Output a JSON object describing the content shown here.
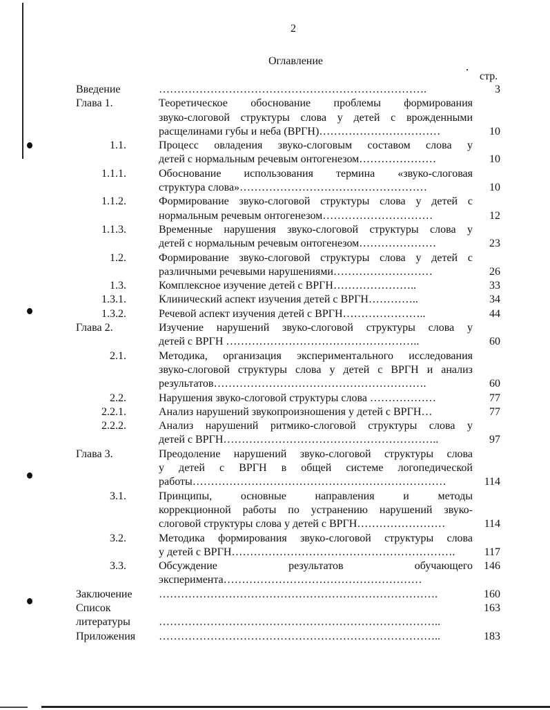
{
  "page_number": "2",
  "title": "Оглавление",
  "page_column_header": "стр.",
  "entries": [
    {
      "num": [
        "Введение"
      ],
      "top": true,
      "lines": [
        {
          "text": "……………………………………………………………….",
          "page": "3"
        }
      ]
    },
    {
      "num": [
        "Глава 1."
      ],
      "top": true,
      "lines": [
        {
          "text": "Теоретическое обоснование проблемы формирования"
        },
        {
          "text": "звуко-слоговой структуры слова у детей с врожденными"
        },
        {
          "text": "расщелинами губы и неба (ВРГН)……………………………",
          "page": "10"
        }
      ]
    },
    {
      "num": [
        "1.1."
      ],
      "lines": [
        {
          "text": "Процесс  овладения звуко-слоговым составом слова у"
        },
        {
          "text": "детей с нормальным речевым онтогенезом…………………",
          "page": "10"
        }
      ]
    },
    {
      "num": [
        "1.1.1."
      ],
      "lines": [
        {
          "text": "Обоснование использования термина «звуко-слоговая"
        },
        {
          "text": "структура слова»……………………………………………",
          "page": "10"
        }
      ]
    },
    {
      "num": [
        "1.1.2."
      ],
      "lines": [
        {
          "text": "Формирование звуко-слоговой структуры слова у детей с"
        },
        {
          "text": "нормальным речевым онтогенезом…………………………",
          "page": "12"
        }
      ]
    },
    {
      "num": [
        "1.1.3."
      ],
      "lines": [
        {
          "text": "Временные нарушения звуко-слоговой структуры слова у"
        },
        {
          "text": "детей с нормальным речевым онтогенезом…………………",
          "page": "23"
        }
      ]
    },
    {
      "num": [
        "1.2."
      ],
      "lines": [
        {
          "text": "Формирование звуко-слоговой структуры слова у детей с"
        },
        {
          "text": "различными  речевыми нарушениями………………………",
          "page": "26"
        }
      ]
    },
    {
      "num": [
        "1.3."
      ],
      "lines": [
        {
          "text": "Комплексное изучение детей с ВРГН…………………..",
          "page": "33"
        }
      ]
    },
    {
      "num": [
        "1.3.1."
      ],
      "lines": [
        {
          "text": "Клинический аспект изучения детей с ВРГН…………..",
          "page": "34"
        }
      ]
    },
    {
      "num": [
        "1.3.2."
      ],
      "lines": [
        {
          "text": "Речевой аспект изучения детей с ВРГН…………………..",
          "page": "44"
        }
      ]
    },
    {
      "num": [
        "Глава 2."
      ],
      "top": true,
      "lines": [
        {
          "text": "Изучение нарушений звуко-слоговой структуры слова у"
        },
        {
          "text": "детей с ВРГН ……………………………………………..",
          "page": "60"
        }
      ]
    },
    {
      "num": [
        "2.1."
      ],
      "lines": [
        {
          "text": "Методика, организация экспериментального исследования"
        },
        {
          "text": "звуко-слоговой структуры слова  у детей с ВРГН и анализ"
        },
        {
          "text": "результатов………………………………………………….",
          "page": "60"
        }
      ]
    },
    {
      "num": [
        "2.2."
      ],
      "lines": [
        {
          "text": "Нарушения звуко-слоговой структуры слова ………………",
          "page": "77"
        }
      ]
    },
    {
      "num": [
        "2.2.1."
      ],
      "lines": [
        {
          "text": "Анализ нарушений звукопроизношения у детей с ВРГН…",
          "page": "77"
        }
      ]
    },
    {
      "num": [
        "2.2.2."
      ],
      "lines": [
        {
          "text": "Анализ нарушений ритмико-слоговой структуры слова у"
        },
        {
          "text": "детей с ВРГН…………………………………………………..",
          "page": "97"
        }
      ]
    },
    {
      "num": [
        "Глава 3."
      ],
      "top": true,
      "lines": [
        {
          "text": "Преодоление нарушений звуко-слоговой структуры слова"
        },
        {
          "text": "у детей с ВРГН в общей системе логопедической"
        },
        {
          "text": "работы……………………………………………………………",
          "page": "114"
        }
      ]
    },
    {
      "num": [
        "3.1."
      ],
      "lines": [
        {
          "text": "Принципы, основные направления и методы"
        },
        {
          "text": "коррекционной работы по устранению нарушений звуко-"
        },
        {
          "text": "слоговой структуры слова у детей с ВРГН……………………",
          "page": "114"
        }
      ]
    },
    {
      "num": [
        "3.2."
      ],
      "lines": [
        {
          "text": "Методика формирования звуко-слоговой структуры слова"
        },
        {
          "text": "у детей с ВРГН…………………………………………………….",
          "page": "117"
        }
      ]
    },
    {
      "num": [
        "3.3."
      ],
      "lines": [
        {
          "text": "Обсуждение результатов обучающего",
          "page": "146"
        },
        {
          "text": "эксперимента………………………………………………"
        }
      ]
    },
    {
      "num": [
        "Заключение"
      ],
      "top": true,
      "lines": [
        {
          "text": "………………………………………………………………….",
          "page": "160"
        }
      ]
    },
    {
      "num": [
        "Список",
        "литературы"
      ],
      "top": true,
      "lines": [
        {
          "text": "",
          "page": "163"
        },
        {
          "text": "………………………………………………………………….."
        }
      ]
    },
    {
      "num": [
        "Приложения"
      ],
      "top": true,
      "lines": [
        {
          "text": "…………………………………………………………………..",
          "page": "183"
        }
      ]
    }
  ]
}
